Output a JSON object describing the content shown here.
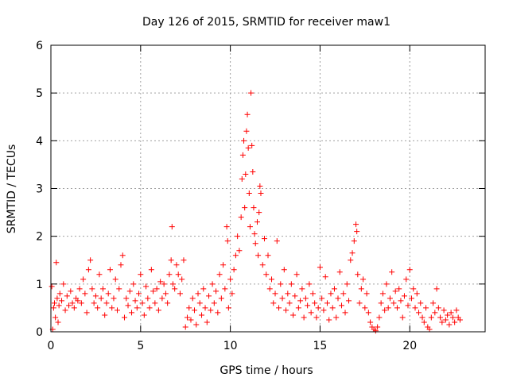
{
  "chart_data": {
    "type": "scatter",
    "title": "Day 126 of 2015, SRMTID for receiver maw1",
    "xlabel": "GPS time / hours",
    "ylabel": "SRMTID / TECUs",
    "xlim": [
      0,
      24.2
    ],
    "ylim": [
      0,
      6
    ],
    "xticks": [
      0,
      5,
      10,
      15,
      20
    ],
    "yticks": [
      0,
      1,
      2,
      3,
      4,
      5,
      6
    ],
    "grid": true,
    "marker": "+",
    "marker_color": "#ff0000",
    "series": [
      {
        "name": "SRMTID",
        "points": [
          [
            0.05,
            0.95
          ],
          [
            0.1,
            0.05
          ],
          [
            0.15,
            0.5
          ],
          [
            0.2,
            0.6
          ],
          [
            0.25,
            0.3
          ],
          [
            0.3,
            1.45
          ],
          [
            0.35,
            0.7
          ],
          [
            0.4,
            0.2
          ],
          [
            0.45,
            0.55
          ],
          [
            0.5,
            0.8
          ],
          [
            0.6,
            0.65
          ],
          [
            0.7,
            1.0
          ],
          [
            0.8,
            0.45
          ],
          [
            0.9,
            0.75
          ],
          [
            1.0,
            0.55
          ],
          [
            1.1,
            0.85
          ],
          [
            1.2,
            0.6
          ],
          [
            1.3,
            0.5
          ],
          [
            1.4,
            0.7
          ],
          [
            1.5,
            0.65
          ],
          [
            1.6,
            0.9
          ],
          [
            1.7,
            0.6
          ],
          [
            1.8,
            1.1
          ],
          [
            1.9,
            0.8
          ],
          [
            2.0,
            0.4
          ],
          [
            2.1,
            1.3
          ],
          [
            2.2,
            1.5
          ],
          [
            2.3,
            0.9
          ],
          [
            2.4,
            0.6
          ],
          [
            2.5,
            0.75
          ],
          [
            2.6,
            0.5
          ],
          [
            2.7,
            1.2
          ],
          [
            2.8,
            0.7
          ],
          [
            2.9,
            0.9
          ],
          [
            3.0,
            0.35
          ],
          [
            3.1,
            0.6
          ],
          [
            3.2,
            0.8
          ],
          [
            3.3,
            1.3
          ],
          [
            3.4,
            0.5
          ],
          [
            3.5,
            0.7
          ],
          [
            3.6,
            1.1
          ],
          [
            3.7,
            0.45
          ],
          [
            3.8,
            0.9
          ],
          [
            3.9,
            1.4
          ],
          [
            4.0,
            1.6
          ],
          [
            4.1,
            0.3
          ],
          [
            4.2,
            0.7
          ],
          [
            4.3,
            0.55
          ],
          [
            4.4,
            0.85
          ],
          [
            4.5,
            0.4
          ],
          [
            4.6,
            1.0
          ],
          [
            4.7,
            0.65
          ],
          [
            4.8,
            0.5
          ],
          [
            4.9,
            0.8
          ],
          [
            5.0,
            1.2
          ],
          [
            5.1,
            0.6
          ],
          [
            5.2,
            0.35
          ],
          [
            5.3,
            0.95
          ],
          [
            5.4,
            0.7
          ],
          [
            5.5,
            0.5
          ],
          [
            5.6,
            1.3
          ],
          [
            5.7,
            0.85
          ],
          [
            5.8,
            0.6
          ],
          [
            5.9,
            0.9
          ],
          [
            6.0,
            0.45
          ],
          [
            6.1,
            1.05
          ],
          [
            6.2,
            0.7
          ],
          [
            6.3,
            1.0
          ],
          [
            6.4,
            0.8
          ],
          [
            6.5,
            0.6
          ],
          [
            6.6,
            1.2
          ],
          [
            6.7,
            1.5
          ],
          [
            6.75,
            2.2
          ],
          [
            6.8,
            1.0
          ],
          [
            6.9,
            0.9
          ],
          [
            7.0,
            1.4
          ],
          [
            7.1,
            1.2
          ],
          [
            7.2,
            0.8
          ],
          [
            7.3,
            1.1
          ],
          [
            7.4,
            1.5
          ],
          [
            7.5,
            0.1
          ],
          [
            7.6,
            0.3
          ],
          [
            7.7,
            0.5
          ],
          [
            7.8,
            0.25
          ],
          [
            7.9,
            0.7
          ],
          [
            8.0,
            0.45
          ],
          [
            8.1,
            0.15
          ],
          [
            8.2,
            0.8
          ],
          [
            8.3,
            0.6
          ],
          [
            8.4,
            0.35
          ],
          [
            8.5,
            0.9
          ],
          [
            8.6,
            0.5
          ],
          [
            8.7,
            0.2
          ],
          [
            8.8,
            0.75
          ],
          [
            8.9,
            0.45
          ],
          [
            9.0,
            1.0
          ],
          [
            9.1,
            0.6
          ],
          [
            9.2,
            0.85
          ],
          [
            9.3,
            0.4
          ],
          [
            9.4,
            1.2
          ],
          [
            9.5,
            0.7
          ],
          [
            9.6,
            1.4
          ],
          [
            9.7,
            0.9
          ],
          [
            9.8,
            2.2
          ],
          [
            9.85,
            1.9
          ],
          [
            9.9,
            0.5
          ],
          [
            10.0,
            1.1
          ],
          [
            10.1,
            0.8
          ],
          [
            10.2,
            1.3
          ],
          [
            10.3,
            1.6
          ],
          [
            10.4,
            2.0
          ],
          [
            10.5,
            1.7
          ],
          [
            10.6,
            2.4
          ],
          [
            10.65,
            3.2
          ],
          [
            10.7,
            3.7
          ],
          [
            10.75,
            4.0
          ],
          [
            10.8,
            2.6
          ],
          [
            10.85,
            3.3
          ],
          [
            10.9,
            4.2
          ],
          [
            10.95,
            4.55
          ],
          [
            11.0,
            3.85
          ],
          [
            11.05,
            2.9
          ],
          [
            11.1,
            2.2
          ],
          [
            11.15,
            5.0
          ],
          [
            11.2,
            3.9
          ],
          [
            11.25,
            3.35
          ],
          [
            11.3,
            2.6
          ],
          [
            11.35,
            2.05
          ],
          [
            11.4,
            1.85
          ],
          [
            11.5,
            2.3
          ],
          [
            11.55,
            1.6
          ],
          [
            11.6,
            2.5
          ],
          [
            11.65,
            3.05
          ],
          [
            11.7,
            2.9
          ],
          [
            11.8,
            1.4
          ],
          [
            11.9,
            1.95
          ],
          [
            12.0,
            1.2
          ],
          [
            12.1,
            1.6
          ],
          [
            12.2,
            0.9
          ],
          [
            12.3,
            1.1
          ],
          [
            12.4,
            0.6
          ],
          [
            12.5,
            0.8
          ],
          [
            12.6,
            1.9
          ],
          [
            12.7,
            0.5
          ],
          [
            12.8,
            1.0
          ],
          [
            12.9,
            0.7
          ],
          [
            13.0,
            1.3
          ],
          [
            13.1,
            0.45
          ],
          [
            13.2,
            0.8
          ],
          [
            13.3,
            0.6
          ],
          [
            13.4,
            1.0
          ],
          [
            13.5,
            0.35
          ],
          [
            13.6,
            0.75
          ],
          [
            13.7,
            1.2
          ],
          [
            13.8,
            0.5
          ],
          [
            13.9,
            0.65
          ],
          [
            14.0,
            0.9
          ],
          [
            14.1,
            0.3
          ],
          [
            14.2,
            0.7
          ],
          [
            14.3,
            0.55
          ],
          [
            14.4,
            1.0
          ],
          [
            14.5,
            0.4
          ],
          [
            14.6,
            0.8
          ],
          [
            14.7,
            0.6
          ],
          [
            14.8,
            0.3
          ],
          [
            14.9,
            0.5
          ],
          [
            15.0,
            1.35
          ],
          [
            15.1,
            0.7
          ],
          [
            15.2,
            0.45
          ],
          [
            15.3,
            1.15
          ],
          [
            15.4,
            0.6
          ],
          [
            15.5,
            0.25
          ],
          [
            15.6,
            0.8
          ],
          [
            15.7,
            0.5
          ],
          [
            15.8,
            0.9
          ],
          [
            15.9,
            0.3
          ],
          [
            16.0,
            0.7
          ],
          [
            16.1,
            1.25
          ],
          [
            16.2,
            0.55
          ],
          [
            16.3,
            0.8
          ],
          [
            16.4,
            0.4
          ],
          [
            16.5,
            1.0
          ],
          [
            16.6,
            0.65
          ],
          [
            16.7,
            1.5
          ],
          [
            16.8,
            1.65
          ],
          [
            16.9,
            1.9
          ],
          [
            17.0,
            2.25
          ],
          [
            17.05,
            2.1
          ],
          [
            17.1,
            1.2
          ],
          [
            17.2,
            0.6
          ],
          [
            17.3,
            0.9
          ],
          [
            17.4,
            1.1
          ],
          [
            17.5,
            0.5
          ],
          [
            17.6,
            0.8
          ],
          [
            17.7,
            0.4
          ],
          [
            17.8,
            0.2
          ],
          [
            17.9,
            0.1
          ],
          [
            18.0,
            0.05
          ],
          [
            18.1,
            0.02
          ],
          [
            18.2,
            0.1
          ],
          [
            18.3,
            0.3
          ],
          [
            18.4,
            0.6
          ],
          [
            18.5,
            0.8
          ],
          [
            18.6,
            0.45
          ],
          [
            18.7,
            1.0
          ],
          [
            18.8,
            0.5
          ],
          [
            18.9,
            0.7
          ],
          [
            19.0,
            1.25
          ],
          [
            19.1,
            0.6
          ],
          [
            19.2,
            0.85
          ],
          [
            19.3,
            0.5
          ],
          [
            19.4,
            0.9
          ],
          [
            19.5,
            0.65
          ],
          [
            19.6,
            0.3
          ],
          [
            19.7,
            0.75
          ],
          [
            19.8,
            1.1
          ],
          [
            19.9,
            0.55
          ],
          [
            20.0,
            1.3
          ],
          [
            20.1,
            0.7
          ],
          [
            20.2,
            0.9
          ],
          [
            20.3,
            0.5
          ],
          [
            20.4,
            0.8
          ],
          [
            20.5,
            0.4
          ],
          [
            20.6,
            0.6
          ],
          [
            20.7,
            0.3
          ],
          [
            20.8,
            0.2
          ],
          [
            20.9,
            0.5
          ],
          [
            21.0,
            0.1
          ],
          [
            21.1,
            0.05
          ],
          [
            21.2,
            0.3
          ],
          [
            21.3,
            0.6
          ],
          [
            21.4,
            0.4
          ],
          [
            21.5,
            0.9
          ],
          [
            21.6,
            0.5
          ],
          [
            21.7,
            0.3
          ],
          [
            21.8,
            0.2
          ],
          [
            21.9,
            0.45
          ],
          [
            22.0,
            0.25
          ],
          [
            22.1,
            0.35
          ],
          [
            22.2,
            0.15
          ],
          [
            22.3,
            0.4
          ],
          [
            22.4,
            0.3
          ],
          [
            22.5,
            0.2
          ],
          [
            22.6,
            0.45
          ],
          [
            22.7,
            0.3
          ],
          [
            22.8,
            0.25
          ]
        ]
      }
    ]
  }
}
